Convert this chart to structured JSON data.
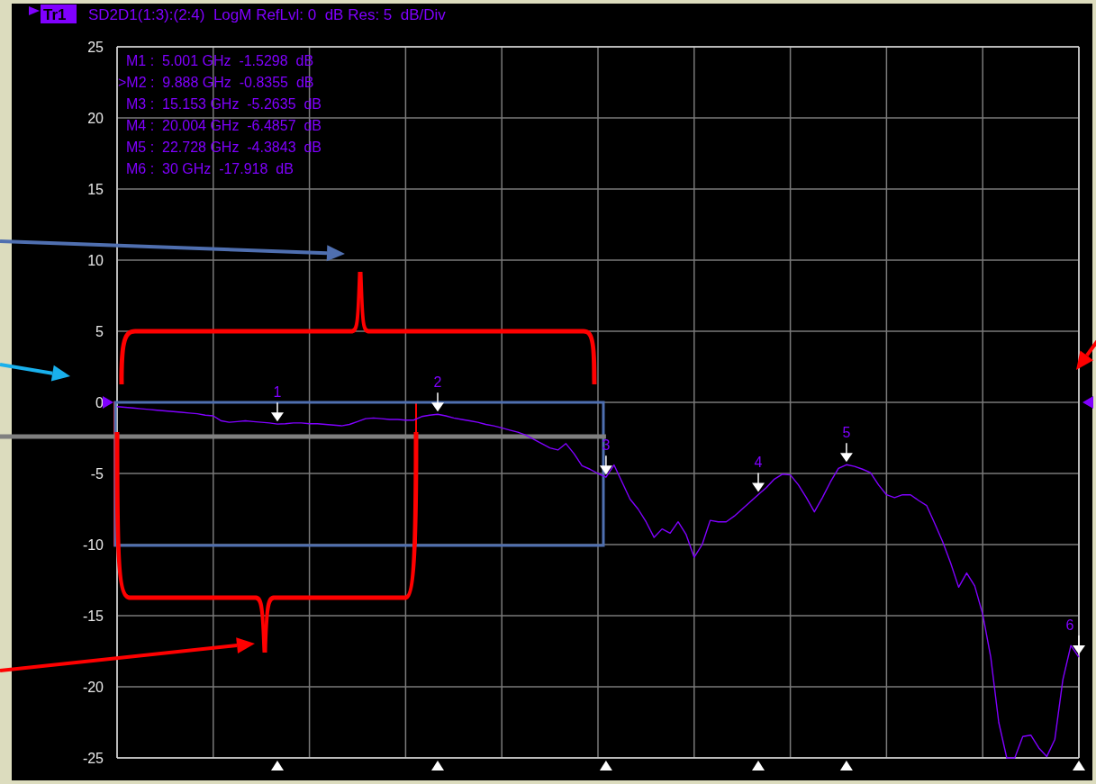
{
  "chart_data": {
    "type": "line",
    "title": "Tr1",
    "subtitle": "SD2D1(1:3):(2:4)  LogM RefLvl: 0  dB Res: 5  dB/Div",
    "categories": [
      null,
      null,
      null,
      null,
      null,
      null,
      null,
      null,
      null,
      null,
      null,
      null,
      null,
      null,
      null,
      null,
      null,
      null,
      null,
      null,
      null,
      null,
      null,
      null,
      null,
      null,
      null,
      null,
      null,
      null,
      null,
      null,
      null,
      null,
      null,
      null,
      null,
      null,
      null,
      null,
      null,
      null,
      null,
      null,
      null,
      null,
      null,
      null,
      null,
      null,
      null,
      null,
      null,
      null,
      null,
      null,
      null,
      null,
      null,
      null,
      null,
      null,
      null,
      null,
      null,
      null,
      null,
      null,
      null,
      null,
      null,
      null,
      null,
      null,
      null,
      null,
      null,
      null,
      null,
      null,
      null,
      null,
      null,
      null,
      null,
      null,
      null,
      null,
      null,
      null,
      null,
      null,
      null,
      null,
      null,
      null,
      null,
      null,
      null,
      null,
      null,
      null,
      null,
      null,
      null,
      null,
      null,
      null,
      null,
      null,
      null,
      null,
      null,
      null,
      null,
      null,
      null,
      null,
      null,
      null,
      null
    ],
    "series": [
      {
        "color": "#8000ff",
        "values": [
          -0.3,
          -0.35,
          -0.4,
          -0.45,
          -0.5,
          -0.55,
          -0.6,
          -0.65,
          -0.7,
          -0.75,
          -0.8,
          -0.9,
          -0.95,
          -1.3,
          -1.4,
          -1.35,
          -1.3,
          -1.35,
          -1.4,
          -1.45,
          -1.5298,
          -1.5,
          -1.45,
          -1.45,
          -1.5,
          -1.5,
          -1.55,
          -1.6,
          -1.65,
          -1.55,
          -1.35,
          -1.15,
          -1.1,
          -1.15,
          -1.2,
          -1.2,
          -1.25,
          -1.25,
          -1.0,
          -0.9,
          -0.8355,
          -0.95,
          -1.1,
          -1.2,
          -1.3,
          -1.4,
          -1.55,
          -1.65,
          -1.8,
          -1.95,
          -2.1,
          -2.3,
          -2.6,
          -2.9,
          -3.2,
          -3.35,
          -2.9,
          -3.6,
          -4.45,
          -4.7,
          -5.0,
          -5.2635,
          -4.4,
          -5.6,
          -6.8,
          -7.5,
          -8.4,
          -9.5,
          -8.9,
          -9.2,
          -8.4,
          -9.3,
          -10.9,
          -10.0,
          -8.3,
          -8.4,
          -8.4,
          -8.0,
          -7.5,
          -7.0,
          -6.4857,
          -6.0,
          -5.4,
          -5.05,
          -5.1,
          -5.8,
          -6.7,
          -7.7,
          -6.7,
          -5.6,
          -4.65,
          -4.3843,
          -4.5,
          -4.7,
          -4.95,
          -5.8,
          -6.5,
          -6.7,
          -6.5,
          -6.5,
          -6.9,
          -7.25,
          -8.5,
          -9.8,
          -11.3,
          -13.0,
          -12.0,
          -12.9,
          -14.9,
          -17.9,
          -22.5,
          -25,
          -25,
          -23.5,
          -23.4,
          -24.3,
          -24.9,
          -23.7,
          -19.5,
          -17.1,
          -17.918
        ]
      }
    ],
    "ylim": [
      -25,
      25
    ],
    "yticks": [
      -25,
      -20,
      -15,
      -10,
      -5,
      0,
      5,
      10,
      15,
      20,
      25
    ],
    "grid": true,
    "tick_labels": "y",
    "ref_lines": [
      {
        "axis": "y",
        "value": -2.4,
        "color": "#808080"
      }
    ],
    "annotations": [
      "M1 :  5.001 GHz  -1.5298  dB",
      ">M2 :  9.888 GHz  -0.8355  dB",
      "M3 :  15.153 GHz  -5.2635  dB",
      "M4 :  20.004 GHz  -6.4857  dB",
      "M5 :  22.728 GHz  -4.3843  dB",
      "M6 :  30 GHz  -17.918  dB",
      {
        "text": "1",
        "y": -1.5298
      },
      {
        "text": "2",
        "y": -0.8355
      },
      {
        "text": "3",
        "y": -5.2635
      },
      {
        "text": "4",
        "y": -6.4857
      },
      {
        "text": "5",
        "y": -4.3843
      },
      {
        "text": "6",
        "y": -17.918
      }
    ]
  }
}
